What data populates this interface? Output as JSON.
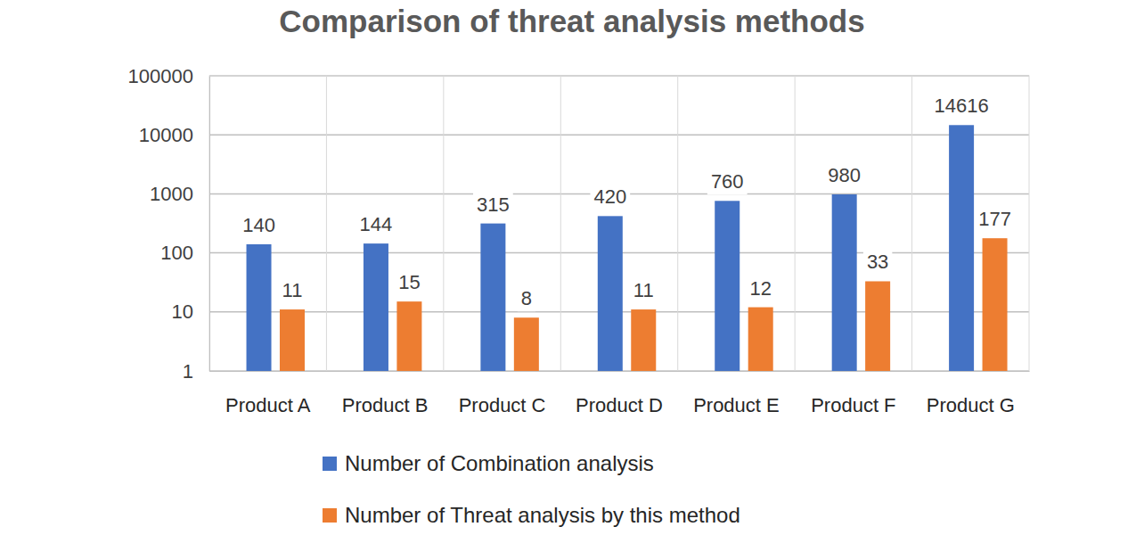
{
  "chart_data": {
    "type": "bar",
    "title": "Comparison of threat analysis methods",
    "categories": [
      "Product A",
      "Product B",
      "Product C",
      "Product D",
      "Product E",
      "Product F",
      "Product G"
    ],
    "series": [
      {
        "name": "Number of Combination analysis",
        "color": "#4472c4",
        "values": [
          140,
          144,
          315,
          420,
          760,
          980,
          14616
        ]
      },
      {
        "name": "Number of Threat analysis by this method",
        "color": "#ed7d31",
        "values": [
          11,
          15,
          8,
          11,
          12,
          33,
          177
        ]
      }
    ],
    "log": "y",
    "ylim": [
      1,
      100000
    ],
    "yticks": [
      1,
      10,
      100,
      1000,
      10000,
      100000
    ],
    "grid": true,
    "data_labels": true,
    "legend": "bottom"
  }
}
